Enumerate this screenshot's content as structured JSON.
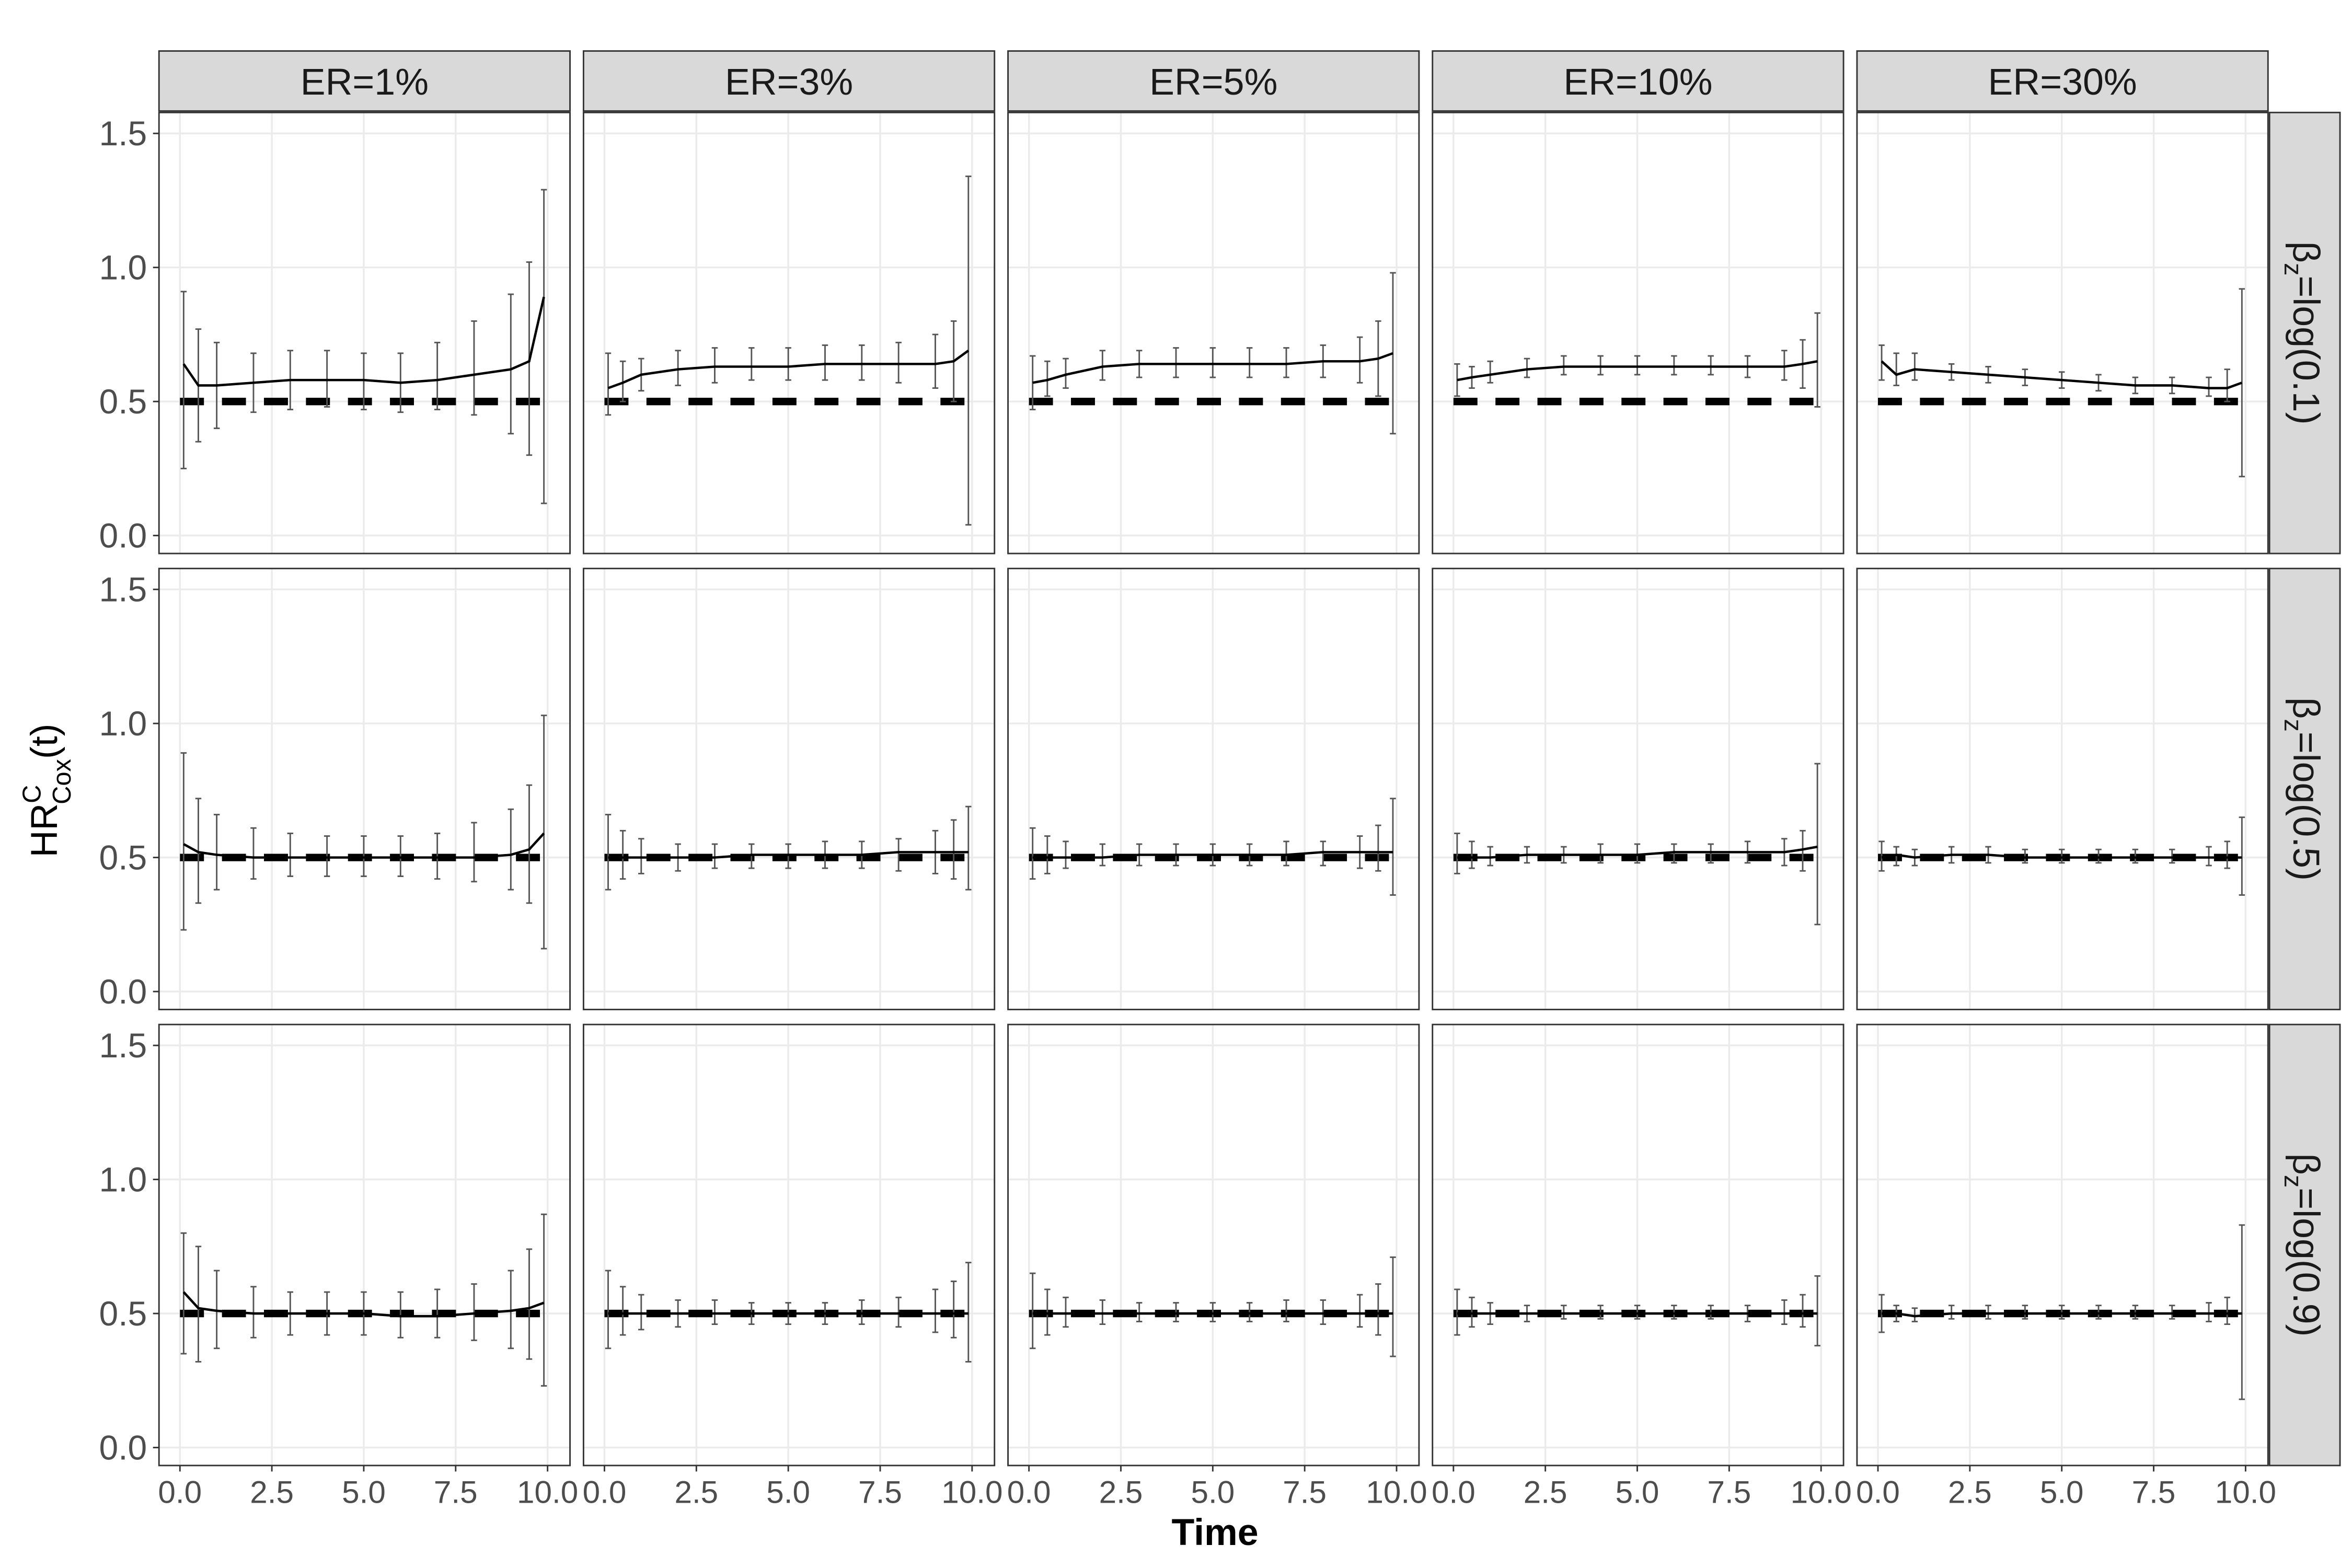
{
  "chart_data": {
    "type": "facet_errorbar_line",
    "y_label": {
      "base": "HR",
      "sup": "C",
      "sub": "Cox",
      "tail": "(t)"
    },
    "x_label": "Time",
    "columns": [
      "ER=1%",
      "ER=3%",
      "ER=5%",
      "ER=10%",
      "ER=30%"
    ],
    "rows": [
      {
        "symbol": "β",
        "sub": "z",
        "text": "=log(0.1)"
      },
      {
        "symbol": "β",
        "sub": "z",
        "text": "=log(0.5)"
      },
      {
        "symbol": "β",
        "sub": "z",
        "text": "=log(0.9)"
      }
    ],
    "x": [
      0.1,
      0.5,
      1,
      2,
      3,
      4,
      5,
      6,
      7,
      8,
      9,
      9.5,
      9.9
    ],
    "xlim": [
      -0.57,
      10.61
    ],
    "xticks": [
      {
        "value": 0,
        "label": "0.0"
      },
      {
        "value": 2.5,
        "label": "2.5"
      },
      {
        "value": 5,
        "label": "5.0"
      },
      {
        "value": 7.5,
        "label": "7.5"
      },
      {
        "value": 10,
        "label": "10.0"
      }
    ],
    "ylim": [
      -0.067,
      1.578
    ],
    "yticks": [
      {
        "value": 0,
        "label": "0.0"
      },
      {
        "value": 0.5,
        "label": "0.5"
      },
      {
        "value": 1,
        "label": "1.0"
      },
      {
        "value": 1.5,
        "label": "1.5"
      }
    ],
    "reference": 0.5,
    "grid": true,
    "line_color": "#000000",
    "bar_color": "#555555",
    "reference_color": "#000000",
    "panels": [
      [
        {
          "values": [
            0.64,
            0.56,
            0.56,
            0.57,
            0.58,
            0.58,
            0.58,
            0.57,
            0.58,
            0.6,
            0.62,
            0.65,
            0.89
          ],
          "lower": [
            0.25,
            0.35,
            0.4,
            0.46,
            0.47,
            0.48,
            0.47,
            0.46,
            0.47,
            0.45,
            0.38,
            0.3,
            0.12
          ],
          "upper": [
            0.91,
            0.77,
            0.72,
            0.68,
            0.69,
            0.69,
            0.68,
            0.68,
            0.72,
            0.8,
            0.9,
            1.02,
            1.29
          ]
        },
        {
          "values": [
            0.55,
            0.57,
            0.6,
            0.62,
            0.63,
            0.63,
            0.63,
            0.64,
            0.64,
            0.64,
            0.64,
            0.65,
            0.69
          ],
          "lower": [
            0.45,
            0.5,
            0.54,
            0.56,
            0.57,
            0.58,
            0.58,
            0.58,
            0.58,
            0.57,
            0.55,
            0.5,
            0.04
          ],
          "upper": [
            0.68,
            0.65,
            0.66,
            0.69,
            0.7,
            0.7,
            0.7,
            0.71,
            0.71,
            0.72,
            0.75,
            0.8,
            1.34
          ]
        },
        {
          "values": [
            0.57,
            0.58,
            0.6,
            0.63,
            0.64,
            0.64,
            0.64,
            0.64,
            0.64,
            0.65,
            0.65,
            0.66,
            0.68
          ],
          "lower": [
            0.47,
            0.52,
            0.55,
            0.58,
            0.59,
            0.59,
            0.59,
            0.59,
            0.59,
            0.59,
            0.57,
            0.52,
            0.38
          ],
          "upper": [
            0.67,
            0.65,
            0.66,
            0.69,
            0.69,
            0.7,
            0.7,
            0.7,
            0.7,
            0.71,
            0.74,
            0.8,
            0.98
          ]
        },
        {
          "values": [
            0.58,
            0.59,
            0.6,
            0.62,
            0.63,
            0.63,
            0.63,
            0.63,
            0.63,
            0.63,
            0.63,
            0.64,
            0.65
          ],
          "lower": [
            0.52,
            0.55,
            0.57,
            0.59,
            0.6,
            0.6,
            0.6,
            0.6,
            0.6,
            0.59,
            0.58,
            0.55,
            0.48
          ],
          "upper": [
            0.64,
            0.63,
            0.65,
            0.66,
            0.67,
            0.67,
            0.67,
            0.67,
            0.67,
            0.67,
            0.69,
            0.73,
            0.83
          ]
        },
        {
          "values": [
            0.65,
            0.6,
            0.62,
            0.61,
            0.6,
            0.59,
            0.58,
            0.57,
            0.56,
            0.56,
            0.55,
            0.55,
            0.57
          ],
          "lower": [
            0.58,
            0.56,
            0.58,
            0.58,
            0.57,
            0.56,
            0.55,
            0.54,
            0.53,
            0.53,
            0.52,
            0.5,
            0.22
          ],
          "upper": [
            0.71,
            0.68,
            0.68,
            0.64,
            0.63,
            0.62,
            0.61,
            0.6,
            0.59,
            0.59,
            0.59,
            0.62,
            0.92
          ]
        }
      ],
      [
        {
          "values": [
            0.55,
            0.52,
            0.51,
            0.5,
            0.5,
            0.5,
            0.5,
            0.5,
            0.5,
            0.5,
            0.51,
            0.53,
            0.59
          ],
          "lower": [
            0.23,
            0.33,
            0.38,
            0.42,
            0.43,
            0.43,
            0.43,
            0.43,
            0.42,
            0.41,
            0.38,
            0.33,
            0.16
          ],
          "upper": [
            0.89,
            0.72,
            0.66,
            0.61,
            0.59,
            0.58,
            0.58,
            0.58,
            0.59,
            0.63,
            0.68,
            0.77,
            1.03
          ]
        },
        {
          "values": [
            0.5,
            0.5,
            0.5,
            0.5,
            0.5,
            0.51,
            0.51,
            0.51,
            0.51,
            0.52,
            0.52,
            0.52,
            0.52
          ],
          "lower": [
            0.38,
            0.42,
            0.44,
            0.45,
            0.46,
            0.46,
            0.46,
            0.46,
            0.46,
            0.45,
            0.44,
            0.42,
            0.38
          ],
          "upper": [
            0.66,
            0.6,
            0.57,
            0.55,
            0.55,
            0.55,
            0.55,
            0.56,
            0.56,
            0.57,
            0.6,
            0.64,
            0.69
          ]
        },
        {
          "values": [
            0.5,
            0.5,
            0.5,
            0.5,
            0.51,
            0.51,
            0.51,
            0.51,
            0.51,
            0.52,
            0.52,
            0.52,
            0.52
          ],
          "lower": [
            0.42,
            0.44,
            0.46,
            0.47,
            0.47,
            0.47,
            0.47,
            0.47,
            0.47,
            0.47,
            0.46,
            0.45,
            0.36
          ],
          "upper": [
            0.61,
            0.58,
            0.56,
            0.55,
            0.55,
            0.55,
            0.55,
            0.55,
            0.56,
            0.56,
            0.58,
            0.62,
            0.72
          ]
        },
        {
          "values": [
            0.5,
            0.5,
            0.5,
            0.51,
            0.51,
            0.51,
            0.51,
            0.52,
            0.52,
            0.52,
            0.52,
            0.53,
            0.54
          ],
          "lower": [
            0.44,
            0.46,
            0.47,
            0.48,
            0.48,
            0.48,
            0.48,
            0.48,
            0.48,
            0.48,
            0.47,
            0.45,
            0.25
          ],
          "upper": [
            0.59,
            0.56,
            0.54,
            0.54,
            0.54,
            0.55,
            0.55,
            0.55,
            0.55,
            0.56,
            0.57,
            0.6,
            0.85
          ]
        },
        {
          "values": [
            0.5,
            0.51,
            0.5,
            0.51,
            0.51,
            0.5,
            0.5,
            0.5,
            0.5,
            0.5,
            0.5,
            0.5,
            0.5
          ],
          "lower": [
            0.45,
            0.47,
            0.47,
            0.48,
            0.48,
            0.48,
            0.48,
            0.48,
            0.48,
            0.48,
            0.47,
            0.46,
            0.36
          ],
          "upper": [
            0.56,
            0.54,
            0.53,
            0.54,
            0.54,
            0.53,
            0.53,
            0.53,
            0.53,
            0.53,
            0.54,
            0.56,
            0.65
          ]
        }
      ],
      [
        {
          "values": [
            0.58,
            0.52,
            0.51,
            0.5,
            0.5,
            0.5,
            0.5,
            0.49,
            0.49,
            0.5,
            0.51,
            0.52,
            0.54
          ],
          "lower": [
            0.35,
            0.32,
            0.37,
            0.41,
            0.42,
            0.42,
            0.42,
            0.41,
            0.41,
            0.4,
            0.37,
            0.33,
            0.23
          ],
          "upper": [
            0.8,
            0.75,
            0.66,
            0.6,
            0.58,
            0.58,
            0.58,
            0.58,
            0.59,
            0.61,
            0.66,
            0.74,
            0.87
          ]
        },
        {
          "values": [
            0.5,
            0.5,
            0.5,
            0.5,
            0.5,
            0.5,
            0.5,
            0.5,
            0.5,
            0.5,
            0.5,
            0.5,
            0.5
          ],
          "lower": [
            0.37,
            0.42,
            0.44,
            0.45,
            0.46,
            0.46,
            0.46,
            0.46,
            0.46,
            0.45,
            0.43,
            0.41,
            0.32
          ],
          "upper": [
            0.66,
            0.6,
            0.57,
            0.55,
            0.55,
            0.54,
            0.54,
            0.54,
            0.55,
            0.56,
            0.59,
            0.62,
            0.69
          ]
        },
        {
          "values": [
            0.5,
            0.5,
            0.5,
            0.5,
            0.5,
            0.5,
            0.5,
            0.5,
            0.5,
            0.5,
            0.5,
            0.5,
            0.5
          ],
          "lower": [
            0.37,
            0.42,
            0.45,
            0.46,
            0.47,
            0.47,
            0.47,
            0.47,
            0.47,
            0.46,
            0.45,
            0.42,
            0.34
          ],
          "upper": [
            0.65,
            0.59,
            0.56,
            0.55,
            0.54,
            0.54,
            0.54,
            0.54,
            0.55,
            0.55,
            0.57,
            0.61,
            0.71
          ]
        },
        {
          "values": [
            0.5,
            0.5,
            0.5,
            0.5,
            0.5,
            0.5,
            0.5,
            0.5,
            0.5,
            0.5,
            0.5,
            0.5,
            0.5
          ],
          "lower": [
            0.42,
            0.45,
            0.46,
            0.47,
            0.48,
            0.48,
            0.48,
            0.48,
            0.48,
            0.47,
            0.46,
            0.45,
            0.38
          ],
          "upper": [
            0.59,
            0.56,
            0.54,
            0.53,
            0.53,
            0.53,
            0.53,
            0.53,
            0.53,
            0.53,
            0.55,
            0.57,
            0.64
          ]
        },
        {
          "values": [
            0.5,
            0.5,
            0.49,
            0.5,
            0.5,
            0.5,
            0.5,
            0.5,
            0.5,
            0.5,
            0.5,
            0.5,
            0.5
          ],
          "lower": [
            0.43,
            0.47,
            0.47,
            0.48,
            0.48,
            0.48,
            0.48,
            0.48,
            0.48,
            0.48,
            0.47,
            0.46,
            0.18
          ],
          "upper": [
            0.57,
            0.53,
            0.52,
            0.53,
            0.53,
            0.53,
            0.53,
            0.53,
            0.53,
            0.53,
            0.54,
            0.56,
            0.83
          ]
        }
      ]
    ]
  }
}
